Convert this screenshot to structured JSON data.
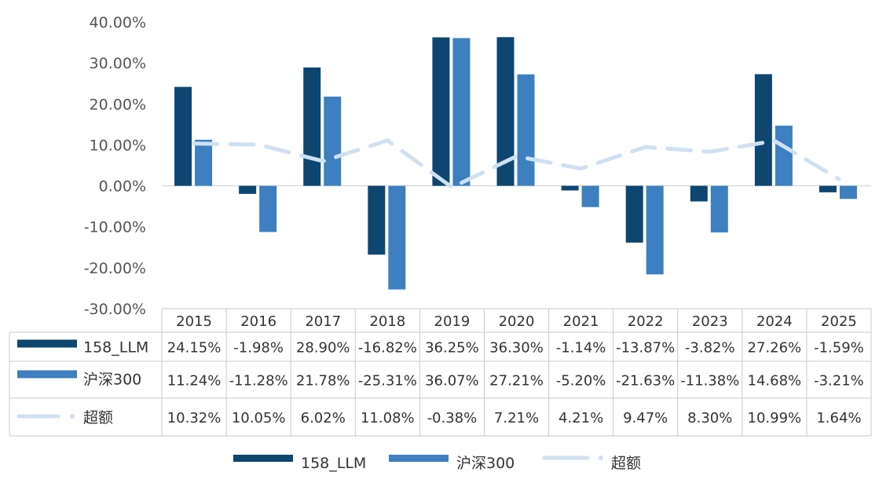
{
  "chart_data": {
    "type": "bar",
    "categories": [
      "2015",
      "2016",
      "2017",
      "2018",
      "2019",
      "2020",
      "2021",
      "2022",
      "2023",
      "2024",
      "2025"
    ],
    "series": [
      {
        "name": "158_LLM",
        "kind": "bar",
        "color": "#0d4670",
        "values": [
          24.15,
          -1.98,
          28.9,
          -16.82,
          36.25,
          36.3,
          -1.14,
          -13.87,
          -3.82,
          27.26,
          -1.59
        ],
        "labels": [
          "24.15%",
          "-1.98%",
          "28.90%",
          "-16.82%",
          "36.25%",
          "36.30%",
          "-1.14%",
          "-13.87%",
          "-3.82%",
          "27.26%",
          "-1.59%"
        ]
      },
      {
        "name": "沪深300",
        "kind": "bar",
        "color": "#3d7fc0",
        "values": [
          11.24,
          -11.28,
          21.78,
          -25.31,
          36.07,
          27.21,
          -5.2,
          -21.63,
          -11.38,
          14.68,
          -3.21
        ],
        "labels": [
          "11.24%",
          "-11.28%",
          "21.78%",
          "-25.31%",
          "36.07%",
          "27.21%",
          "-5.20%",
          "-21.63%",
          "-11.38%",
          "14.68%",
          "-3.21%"
        ]
      },
      {
        "name": "超额",
        "kind": "line",
        "color": "#cfe0f1",
        "values": [
          10.32,
          10.05,
          6.02,
          11.08,
          -0.38,
          7.21,
          4.21,
          9.47,
          8.3,
          10.99,
          1.64
        ],
        "labels": [
          "10.32%",
          "10.05%",
          "6.02%",
          "11.08%",
          "-0.38%",
          "7.21%",
          "4.21%",
          "9.47%",
          "8.30%",
          "10.99%",
          "1.64%"
        ]
      }
    ],
    "yticks": [
      "40.00%",
      "30.00%",
      "20.00%",
      "10.00%",
      "0.00%",
      "-10.00%",
      "-20.00%",
      "-30.00%"
    ],
    "ylim": [
      -30,
      40
    ],
    "ylim_display_cap": 36.3,
    "data_table": true,
    "legend_position": "bottom",
    "title": "",
    "xlabel": "",
    "ylabel": ""
  }
}
